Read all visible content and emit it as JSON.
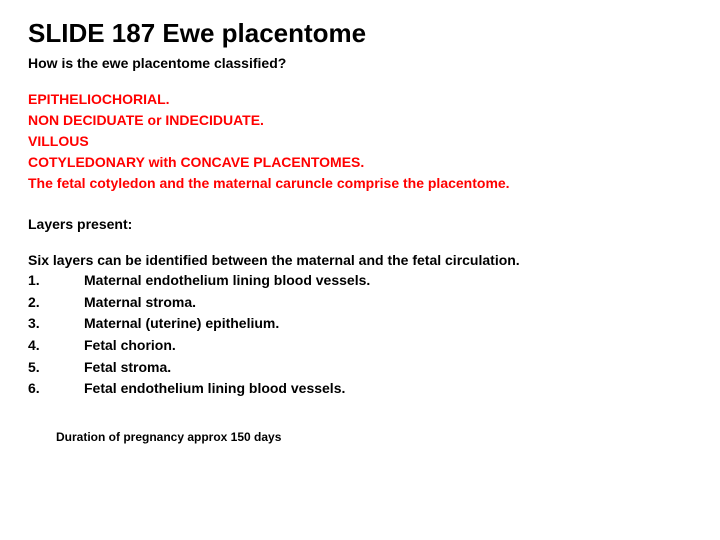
{
  "title": "SLIDE 187  Ewe placentome",
  "question": "How is the ewe placentome classified?",
  "classification": [
    "EPITHELIOCHORIAL.",
    "NON DECIDUATE or INDECIDUATE.",
    "VILLOUS",
    "COTYLEDONARY with CONCAVE PLACENTOMES.",
    "The fetal cotyledon and the maternal caruncle comprise the placentome."
  ],
  "layers_label": "Layers present:",
  "layers_intro": "Six layers can be identified between the maternal and the fetal circulation.",
  "layers": [
    {
      "n": "1.",
      "t": "Maternal endothelium lining blood vessels."
    },
    {
      "n": "2.",
      "t": "Maternal stroma."
    },
    {
      "n": "3.",
      "t": "Maternal (uterine) epithelium."
    },
    {
      "n": "4.",
      "t": "Fetal chorion."
    },
    {
      "n": "5.",
      "t": "Fetal stroma."
    },
    {
      "n": "6.",
      "t": "Fetal endothelium lining blood vessels."
    }
  ],
  "footer": "Duration of pregnancy approx 150 days",
  "colors": {
    "accent": "#ff0000",
    "text": "#000000",
    "background": "#ffffff"
  }
}
